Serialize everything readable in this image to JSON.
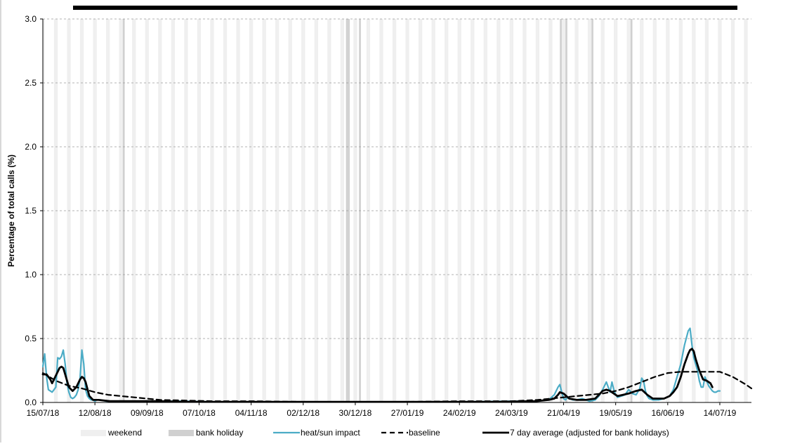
{
  "chart_data": {
    "type": "line",
    "title": "",
    "ylabel": "Percentage of total calls (%)",
    "xlabel": "",
    "ylim": [
      0,
      3.0
    ],
    "yticks": [
      "0.0",
      "0.5",
      "1.0",
      "1.5",
      "2.0",
      "2.5",
      "3.0"
    ],
    "x_start": "15/07/18",
    "x_end": "31/07/19",
    "xticks": [
      "15/07/18",
      "12/08/18",
      "09/09/18",
      "07/10/18",
      "04/11/18",
      "02/12/18",
      "30/12/18",
      "27/01/19",
      "24/02/19",
      "24/03/19",
      "21/04/19",
      "19/05/19",
      "16/06/19",
      "14/07/19"
    ],
    "grid": "horizontal dashed",
    "legend_position": "bottom",
    "shading": {
      "weekend_color": "#efefef",
      "bank_holiday_color": "#d0d0d0",
      "bank_holidays": [
        "27/08/18",
        "25/12/18",
        "26/12/18",
        "01/01/19",
        "19/04/19",
        "22/04/19",
        "06/05/19",
        "27/05/19"
      ]
    },
    "legend": [
      {
        "label": "weekend",
        "style": "fill",
        "color": "#efefef"
      },
      {
        "label": "bank holiday",
        "style": "fill",
        "color": "#d0d0d0"
      },
      {
        "label": "heat/sun impact",
        "style": "solid",
        "color": "#4bacc6"
      },
      {
        "label": "baseline",
        "style": "dashed",
        "color": "#000000"
      },
      {
        "label": "7 day average (adjusted for bank holidays)",
        "style": "solid-thick",
        "color": "#000000"
      }
    ],
    "series": [
      {
        "name": "heat/sun impact",
        "color": "#4bacc6",
        "x": [
          "15/07/18",
          "16/07/18",
          "17/07/18",
          "18/07/18",
          "19/07/18",
          "20/07/18",
          "21/07/18",
          "22/07/18",
          "23/07/18",
          "24/07/18",
          "25/07/18",
          "26/07/18",
          "27/07/18",
          "28/07/18",
          "29/07/18",
          "30/07/18",
          "31/07/18",
          "01/08/18",
          "02/08/18",
          "03/08/18",
          "04/08/18",
          "05/08/18",
          "06/08/18",
          "07/08/18",
          "08/08/18",
          "09/08/18",
          "10/08/18",
          "11/08/18",
          "12/08/18",
          "13/08/18",
          "14/08/18",
          "15/08/18",
          "18/08/18",
          "25/08/18",
          "01/09/18",
          "08/09/18",
          "15/09/18",
          "22/09/18",
          "29/09/18",
          "13/10/18",
          "03/11/18",
          "01/12/18",
          "29/12/18",
          "26/01/19",
          "23/02/19",
          "23/03/19",
          "06/04/19",
          "13/04/19",
          "16/04/19",
          "18/04/19",
          "19/04/19",
          "20/04/19",
          "21/04/19",
          "22/04/19",
          "23/04/19",
          "24/04/19",
          "26/04/19",
          "28/04/19",
          "01/05/19",
          "05/05/19",
          "08/05/19",
          "10/05/19",
          "12/05/19",
          "14/05/19",
          "15/05/19",
          "16/05/19",
          "17/05/19",
          "18/05/19",
          "19/05/19",
          "20/05/19",
          "22/05/19",
          "24/05/19",
          "26/05/19",
          "28/05/19",
          "30/05/19",
          "01/06/19",
          "02/06/19",
          "03/06/19",
          "04/06/19",
          "05/06/19",
          "06/06/19",
          "08/06/19",
          "11/06/19",
          "14/06/19",
          "17/06/19",
          "19/06/19",
          "21/06/19",
          "23/06/19",
          "25/06/19",
          "27/06/19",
          "28/06/19",
          "29/06/19",
          "30/06/19",
          "01/07/19",
          "02/07/19",
          "03/07/19",
          "04/07/19",
          "05/07/19",
          "06/07/19",
          "08/07/19",
          "10/07/19",
          "11/07/19",
          "12/07/19",
          "13/07/19",
          "14/07/19"
        ],
        "y": [
          0.28,
          0.38,
          0.2,
          0.1,
          0.09,
          0.08,
          0.1,
          0.12,
          0.35,
          0.34,
          0.36,
          0.41,
          0.3,
          0.15,
          0.08,
          0.04,
          0.03,
          0.04,
          0.06,
          0.1,
          0.19,
          0.41,
          0.3,
          0.1,
          0.05,
          0.03,
          0.02,
          0.02,
          0.01,
          0.02,
          0.02,
          0.02,
          0.01,
          0.01,
          0.01,
          0.01,
          0.01,
          0.01,
          0.01,
          0.005,
          0.005,
          0.005,
          0.005,
          0.005,
          0.005,
          0.01,
          0.01,
          0.02,
          0.06,
          0.12,
          0.14,
          0.08,
          0.03,
          0.02,
          0.04,
          0.03,
          0.02,
          0.02,
          0.03,
          0.01,
          0.02,
          0.05,
          0.1,
          0.16,
          0.12,
          0.08,
          0.16,
          0.1,
          0.06,
          0.04,
          0.05,
          0.06,
          0.1,
          0.07,
          0.06,
          0.11,
          0.19,
          0.17,
          0.09,
          0.05,
          0.03,
          0.02,
          0.02,
          0.03,
          0.05,
          0.1,
          0.2,
          0.3,
          0.45,
          0.56,
          0.58,
          0.45,
          0.35,
          0.3,
          0.25,
          0.17,
          0.12,
          0.12,
          0.2,
          0.13,
          0.09,
          0.08,
          0.08,
          0.09,
          0.09
        ]
      },
      {
        "name": "baseline",
        "color": "#000000",
        "x": [
          "15/07/18",
          "22/07/18",
          "29/07/18",
          "05/08/18",
          "12/08/18",
          "19/08/18",
          "26/08/18",
          "02/09/18",
          "09/09/18",
          "16/09/18",
          "30/09/18",
          "14/10/18",
          "04/11/18",
          "02/12/18",
          "30/12/18",
          "27/01/19",
          "24/02/19",
          "24/03/19",
          "07/04/19",
          "21/04/19",
          "28/04/19",
          "05/05/19",
          "12/05/19",
          "19/05/19",
          "26/05/19",
          "02/06/19",
          "09/06/19",
          "16/06/19",
          "23/06/19",
          "30/06/19",
          "07/07/19",
          "14/07/19",
          "21/07/19",
          "28/07/19",
          "31/07/19"
        ],
        "y": [
          0.23,
          0.17,
          0.13,
          0.11,
          0.08,
          0.06,
          0.05,
          0.04,
          0.03,
          0.02,
          0.015,
          0.01,
          0.01,
          0.005,
          0.005,
          0.005,
          0.01,
          0.01,
          0.02,
          0.04,
          0.05,
          0.06,
          0.07,
          0.09,
          0.12,
          0.16,
          0.2,
          0.23,
          0.24,
          0.24,
          0.24,
          0.24,
          0.2,
          0.14,
          0.11
        ]
      },
      {
        "name": "7 day average (adjusted for bank holidays)",
        "color": "#000000",
        "x": [
          "15/07/18",
          "17/07/18",
          "19/07/18",
          "20/07/18",
          "22/07/18",
          "24/07/18",
          "25/07/18",
          "26/07/18",
          "27/07/18",
          "29/07/18",
          "31/07/18",
          "02/08/18",
          "04/08/18",
          "05/08/18",
          "06/08/18",
          "07/08/18",
          "09/08/18",
          "11/08/18",
          "14/08/18",
          "20/08/18",
          "01/09/18",
          "15/09/18",
          "29/09/18",
          "27/10/18",
          "24/11/18",
          "22/12/18",
          "19/01/19",
          "16/02/19",
          "16/03/19",
          "06/04/19",
          "13/04/19",
          "16/04/19",
          "18/04/19",
          "19/04/19",
          "21/04/19",
          "24/04/19",
          "28/04/19",
          "03/05/19",
          "08/05/19",
          "10/05/19",
          "12/05/19",
          "14/05/19",
          "16/05/19",
          "18/05/19",
          "20/05/19",
          "23/05/19",
          "26/05/19",
          "28/05/19",
          "30/05/19",
          "02/06/19",
          "05/06/19",
          "08/06/19",
          "11/06/19",
          "14/06/19",
          "17/06/19",
          "19/06/19",
          "21/06/19",
          "23/06/19",
          "25/06/19",
          "27/06/19",
          "28/06/19",
          "29/06/19",
          "30/06/19",
          "01/07/19",
          "03/07/19",
          "05/07/19",
          "07/07/19",
          "09/07/19",
          "10/07/19"
        ],
        "y": [
          0.22,
          0.22,
          0.18,
          0.15,
          0.21,
          0.27,
          0.28,
          0.27,
          0.22,
          0.12,
          0.09,
          0.12,
          0.18,
          0.2,
          0.19,
          0.16,
          0.05,
          0.02,
          0.02,
          0.01,
          0.01,
          0.01,
          0.005,
          0.005,
          0.005,
          0.005,
          0.005,
          0.005,
          0.005,
          0.01,
          0.02,
          0.03,
          0.06,
          0.08,
          0.07,
          0.03,
          0.02,
          0.02,
          0.03,
          0.06,
          0.09,
          0.1,
          0.09,
          0.07,
          0.05,
          0.06,
          0.07,
          0.08,
          0.09,
          0.1,
          0.06,
          0.03,
          0.03,
          0.03,
          0.05,
          0.08,
          0.12,
          0.2,
          0.3,
          0.38,
          0.41,
          0.42,
          0.4,
          0.34,
          0.25,
          0.18,
          0.17,
          0.15,
          0.12
        ]
      }
    ]
  }
}
